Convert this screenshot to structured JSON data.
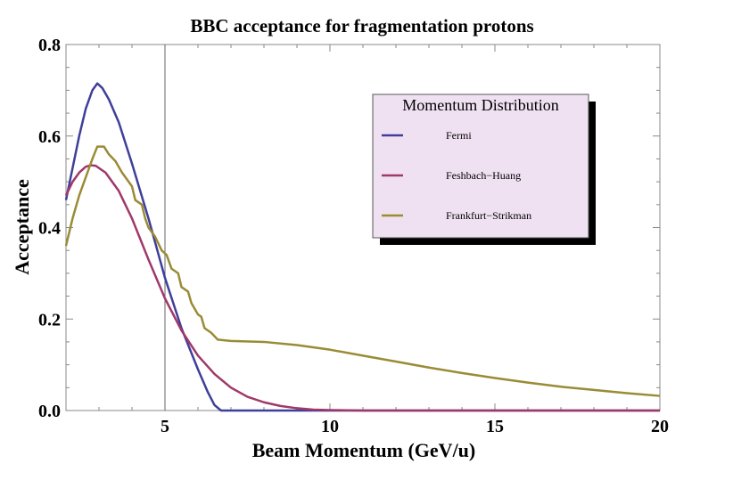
{
  "chart_data": {
    "type": "line",
    "title": "BBC acceptance for fragmentation protons",
    "xlabel": "Beam Momentum (GeV/u)",
    "ylabel": "Acceptance",
    "xlim": [
      2,
      20
    ],
    "ylim": [
      0,
      0.8
    ],
    "x_ticks": [
      5,
      10,
      15,
      20
    ],
    "y_ticks": [
      0.0,
      0.2,
      0.4,
      0.6,
      0.8
    ],
    "y_tick_labels": [
      "0.0",
      "0.2",
      "0.4",
      "0.6",
      "0.8"
    ],
    "reference_line_x": 5,
    "grid": false,
    "legend": {
      "title": "Momentum Distribution",
      "placement": "top-right"
    },
    "series": [
      {
        "name": "Fermi",
        "color": "#3f3f9a",
        "points": [
          [
            2.0,
            0.46
          ],
          [
            2.2,
            0.53
          ],
          [
            2.4,
            0.6
          ],
          [
            2.6,
            0.66
          ],
          [
            2.8,
            0.7
          ],
          [
            2.95,
            0.715
          ],
          [
            3.1,
            0.705
          ],
          [
            3.3,
            0.68
          ],
          [
            3.6,
            0.63
          ],
          [
            4.0,
            0.54
          ],
          [
            4.5,
            0.42
          ],
          [
            5.0,
            0.29
          ],
          [
            5.5,
            0.18
          ],
          [
            6.0,
            0.09
          ],
          [
            6.3,
            0.04
          ],
          [
            6.5,
            0.012
          ],
          [
            6.7,
            0.0
          ],
          [
            7.0,
            0.0
          ],
          [
            10,
            0.0
          ],
          [
            15,
            0.0
          ],
          [
            20,
            0.0
          ]
        ]
      },
      {
        "name": "Feshbach−Huang",
        "color": "#a0386a",
        "points": [
          [
            2.0,
            0.47
          ],
          [
            2.2,
            0.5
          ],
          [
            2.4,
            0.52
          ],
          [
            2.6,
            0.533
          ],
          [
            2.75,
            0.536
          ],
          [
            2.9,
            0.535
          ],
          [
            3.2,
            0.52
          ],
          [
            3.6,
            0.48
          ],
          [
            4.0,
            0.42
          ],
          [
            4.5,
            0.33
          ],
          [
            5.0,
            0.245
          ],
          [
            5.5,
            0.175
          ],
          [
            6.0,
            0.12
          ],
          [
            6.5,
            0.08
          ],
          [
            7.0,
            0.05
          ],
          [
            7.5,
            0.03
          ],
          [
            8.0,
            0.018
          ],
          [
            8.5,
            0.01
          ],
          [
            9.0,
            0.005
          ],
          [
            9.5,
            0.002
          ],
          [
            10.0,
            0.001
          ],
          [
            11.0,
            0.0
          ],
          [
            15,
            0.0
          ],
          [
            20,
            0.0
          ]
        ]
      },
      {
        "name": "Frankfurt−Strikman",
        "color": "#9a8b35",
        "points": [
          [
            2.0,
            0.36
          ],
          [
            2.2,
            0.42
          ],
          [
            2.4,
            0.47
          ],
          [
            2.6,
            0.51
          ],
          [
            2.8,
            0.55
          ],
          [
            2.95,
            0.577
          ],
          [
            3.15,
            0.577
          ],
          [
            3.3,
            0.56
          ],
          [
            3.5,
            0.545
          ],
          [
            3.7,
            0.52
          ],
          [
            3.9,
            0.5
          ],
          [
            4.0,
            0.49
          ],
          [
            4.1,
            0.46
          ],
          [
            4.3,
            0.45
          ],
          [
            4.4,
            0.42
          ],
          [
            4.5,
            0.4
          ],
          [
            4.7,
            0.38
          ],
          [
            4.9,
            0.35
          ],
          [
            5.05,
            0.34
          ],
          [
            5.2,
            0.31
          ],
          [
            5.4,
            0.3
          ],
          [
            5.5,
            0.27
          ],
          [
            5.7,
            0.26
          ],
          [
            5.8,
            0.235
          ],
          [
            6.0,
            0.21
          ],
          [
            6.1,
            0.205
          ],
          [
            6.2,
            0.18
          ],
          [
            6.4,
            0.17
          ],
          [
            6.6,
            0.155
          ],
          [
            7.0,
            0.152
          ],
          [
            8.0,
            0.15
          ],
          [
            9.0,
            0.143
          ],
          [
            10.0,
            0.133
          ],
          [
            11.0,
            0.12
          ],
          [
            12.0,
            0.107
          ],
          [
            13.0,
            0.094
          ],
          [
            14.0,
            0.082
          ],
          [
            15.0,
            0.071
          ],
          [
            16.0,
            0.061
          ],
          [
            17.0,
            0.052
          ],
          [
            18.0,
            0.045
          ],
          [
            19.0,
            0.038
          ],
          [
            20.0,
            0.032
          ]
        ]
      }
    ]
  }
}
